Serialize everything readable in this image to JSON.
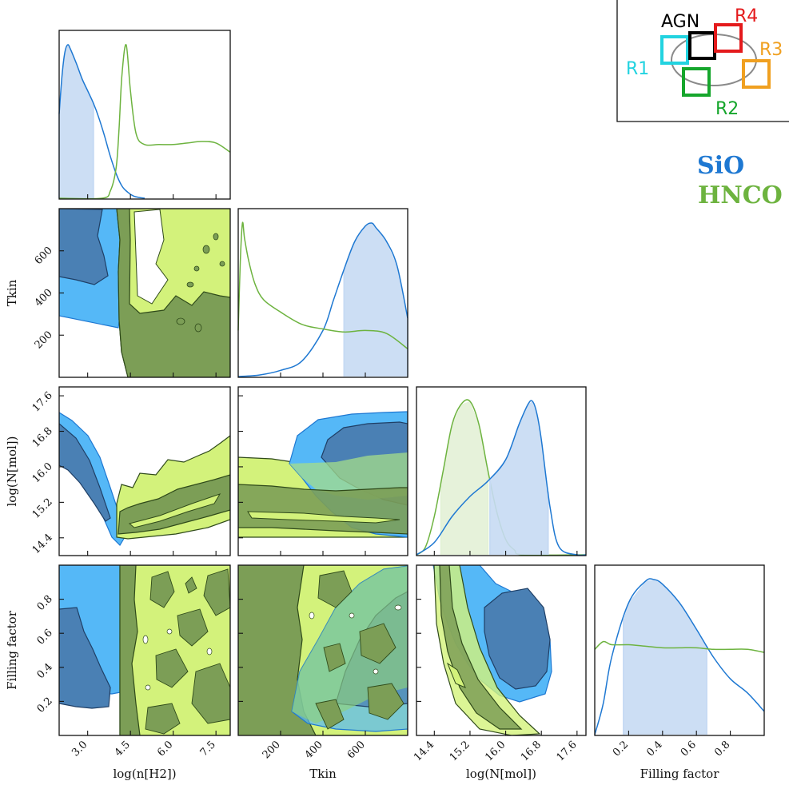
{
  "chart_data": {
    "type": "corner-plot",
    "parameters": [
      "log(n[H2])",
      "Tkin",
      "log(N[mol])",
      "Filling factor"
    ],
    "axes": {
      "log(n[H2])": {
        "range": [
          2.0,
          8.0
        ],
        "ticks": [
          3.0,
          4.5,
          6.0,
          7.5
        ],
        "tick_labels": [
          "3.0",
          "4.5",
          "6.0",
          "7.5"
        ]
      },
      "Tkin": {
        "range": [
          0,
          800
        ],
        "ticks": [
          200,
          400,
          600
        ],
        "tick_labels": [
          "200",
          "400",
          "600"
        ]
      },
      "log(N[mol])": {
        "range": [
          14.0,
          17.8
        ],
        "ticks": [
          14.4,
          15.2,
          16.0,
          16.8,
          17.6
        ],
        "tick_labels": [
          "14.4",
          "15.2",
          "16.0",
          "16.8",
          "17.6"
        ]
      },
      "Filling factor": {
        "range": [
          0.0,
          1.0
        ],
        "ticks": [
          0.2,
          0.4,
          0.6,
          0.8
        ],
        "tick_labels": [
          "0.2",
          "0.4",
          "0.6",
          "0.8"
        ]
      }
    },
    "series": [
      {
        "name": "SiO",
        "color": "#1e78d2",
        "marginals": {
          "log(n[H2])": {
            "x": [
              2.0,
              2.1,
              2.2,
              2.3,
              2.4,
              2.6,
              2.8,
              3.0,
              3.2,
              3.4,
              3.6,
              3.8,
              4.0,
              4.2,
              4.4,
              4.6,
              4.8,
              5.0
            ],
            "density": [
              0.55,
              0.8,
              0.95,
              1.0,
              0.97,
              0.88,
              0.78,
              0.7,
              0.62,
              0.52,
              0.4,
              0.27,
              0.16,
              0.08,
              0.04,
              0.015,
              0.005,
              0.0
            ],
            "hdi": [
              2.0,
              3.2
            ]
          },
          "Tkin": {
            "x": [
              0,
              100,
              200,
              300,
              400,
              450,
              500,
              550,
              600,
              630,
              650,
              700,
              750,
              800
            ],
            "density": [
              0.0,
              0.01,
              0.04,
              0.1,
              0.3,
              0.5,
              0.7,
              0.88,
              0.98,
              1.0,
              0.97,
              0.88,
              0.72,
              0.38
            ],
            "hdi": [
              500,
              800
            ]
          },
          "log(N[mol])": {
            "x": [
              14.0,
              14.4,
              14.8,
              15.2,
              15.6,
              16.0,
              16.3,
              16.5,
              16.6,
              16.7,
              16.8,
              17.0,
              17.2,
              17.6,
              17.8
            ],
            "density": [
              0.0,
              0.08,
              0.25,
              0.38,
              0.48,
              0.62,
              0.85,
              0.98,
              1.0,
              0.92,
              0.75,
              0.3,
              0.05,
              0.0,
              0.0
            ],
            "hdi": [
              15.65,
              16.95
            ]
          },
          "Filling factor": {
            "x": [
              0.0,
              0.05,
              0.1,
              0.2,
              0.3,
              0.35,
              0.4,
              0.5,
              0.6,
              0.7,
              0.8,
              0.9,
              1.0
            ],
            "density": [
              0.0,
              0.2,
              0.5,
              0.85,
              0.99,
              1.0,
              0.97,
              0.85,
              0.68,
              0.5,
              0.36,
              0.27,
              0.15
            ],
            "hdi": [
              0.17,
              0.66
            ]
          }
        }
      },
      {
        "name": "HNCO",
        "color": "#6db33f",
        "marginals": {
          "log(n[H2])": {
            "x": [
              2.0,
              3.5,
              3.8,
              4.0,
              4.1,
              4.2,
              4.35,
              4.5,
              4.7,
              5.0,
              5.5,
              6.0,
              6.5,
              7.0,
              7.5,
              8.0
            ],
            "density": [
              0.0,
              0.0,
              0.05,
              0.2,
              0.45,
              0.8,
              1.0,
              0.7,
              0.42,
              0.35,
              0.35,
              0.35,
              0.36,
              0.37,
              0.36,
              0.3
            ],
            "hdi": null
          },
          "Tkin": {
            "x": [
              0,
              10,
              20,
              30,
              50,
              80,
              120,
              200,
              300,
              400,
              500,
              600,
              700,
              800
            ],
            "density": [
              0.3,
              0.75,
              1.0,
              0.9,
              0.75,
              0.6,
              0.5,
              0.42,
              0.34,
              0.31,
              0.29,
              0.3,
              0.28,
              0.18
            ],
            "hdi": null
          },
          "log(N[mol])": {
            "x": [
              14.0,
              14.2,
              14.4,
              14.6,
              14.8,
              15.0,
              15.2,
              15.4,
              15.6,
              15.8,
              16.0,
              16.2,
              16.4,
              17.8
            ],
            "density": [
              0.0,
              0.05,
              0.25,
              0.55,
              0.85,
              0.98,
              1.0,
              0.85,
              0.55,
              0.28,
              0.1,
              0.03,
              0.0,
              0.0
            ],
            "hdi": [
              14.55,
              15.6
            ]
          },
          "Filling factor": {
            "x": [
              0.0,
              0.05,
              0.1,
              0.2,
              0.3,
              0.4,
              0.5,
              0.6,
              0.7,
              0.8,
              0.9,
              1.0
            ],
            "density": [
              0.55,
              0.6,
              0.58,
              0.58,
              0.57,
              0.56,
              0.56,
              0.56,
              0.55,
              0.55,
              0.55,
              0.53
            ],
            "hdi": null
          }
        }
      }
    ],
    "legend": [
      "SiO",
      "HNCO"
    ],
    "legend_placement": "top-right"
  },
  "inset": {
    "labels": {
      "agn": "AGN",
      "r1": "R1",
      "r2": "R2",
      "r3": "R3",
      "r4": "R4"
    },
    "colors": {
      "agn": "#000000",
      "r1": "#22d3e0",
      "r2": "#16a62c",
      "r3": "#f0a020",
      "r4": "#e41a1c"
    }
  },
  "legend": {
    "sio": "SiO",
    "hnco": "HNCO"
  },
  "colors": {
    "sio_fill_outer": "#55b8f7",
    "sio_fill_inner": "#4a80b4",
    "sio_line": "#1e78d2",
    "hnco_fill_outer": "#d3f27b",
    "hnco_fill_inner": "#7c9e56",
    "hnco_line": "#6db33f"
  }
}
